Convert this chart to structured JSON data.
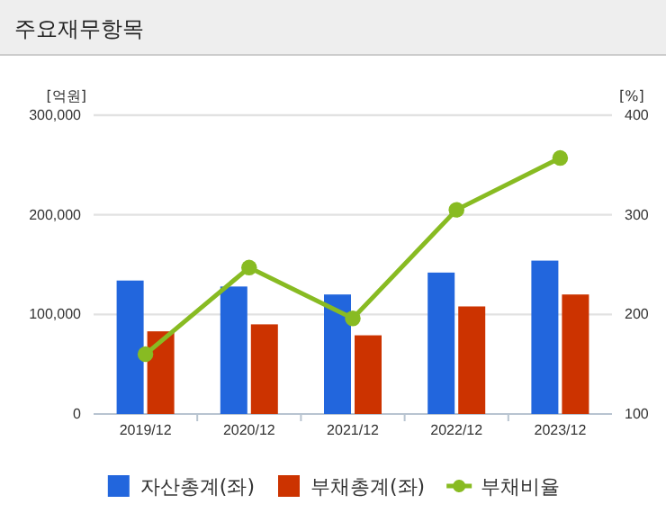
{
  "chart_data": {
    "type": "bar",
    "title": "주요재무항목",
    "ylabel": "[억원]",
    "y2label": "[%]",
    "categories": [
      "2019/12",
      "2020/12",
      "2021/12",
      "2022/12",
      "2023/12"
    ],
    "series": [
      {
        "name": "자산총계(좌)",
        "color": "#2266dd",
        "values": [
          134000,
          128000,
          120000,
          142000,
          154000
        ]
      },
      {
        "name": "부채총계(좌)",
        "color": "#cc3300",
        "values": [
          83000,
          90000,
          79000,
          108000,
          120000
        ]
      },
      {
        "name": "부채비율",
        "type": "line",
        "axis": "y2",
        "color": "#88bb22",
        "values": [
          160,
          247,
          196,
          305,
          357
        ]
      }
    ],
    "ylim": [
      0,
      300000
    ],
    "yticks": [
      {
        "value": 0,
        "label": "0"
      },
      {
        "value": 100000,
        "label": "100,000"
      },
      {
        "value": 200000,
        "label": "200,000"
      },
      {
        "value": 300000,
        "label": "300,000"
      }
    ],
    "y2lim": [
      100,
      400
    ],
    "y2ticks": [
      100,
      200,
      300,
      400
    ],
    "grid": "y",
    "legend": "bottom",
    "marker": "circle",
    "line_style": "solid"
  }
}
